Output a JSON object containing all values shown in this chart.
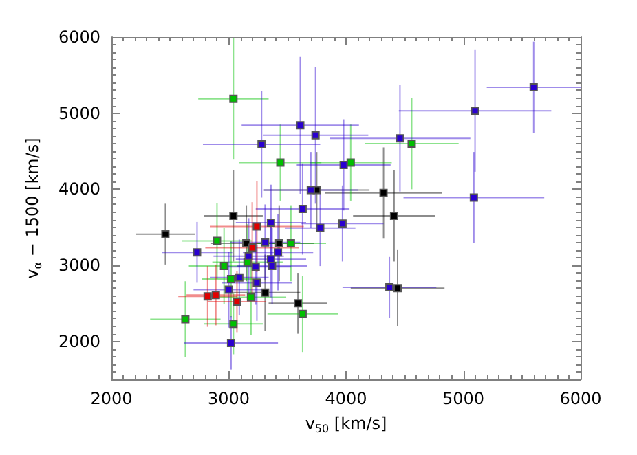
{
  "chart_data": {
    "type": "scatter",
    "xlabel": "v$_{50}$ [km/s]",
    "ylabel": "v$_{α}$ − 1500 [km/s]",
    "xlim": [
      2000,
      6000
    ],
    "ylim": [
      1500,
      6000
    ],
    "xticks": [
      2000,
      3000,
      4000,
      5000,
      6000
    ],
    "yticks": [
      2000,
      3000,
      4000,
      5000,
      6000
    ],
    "grid": false,
    "marker": "square",
    "series": [
      {
        "color": "#000000",
        "x": [
          2460,
          3040,
          3150,
          3430,
          3750,
          4320,
          4410,
          3310,
          3590,
          4440
        ],
        "values": [
          3410,
          3650,
          3290,
          3290,
          3990,
          3950,
          3650,
          2640,
          2500,
          2700
        ],
        "xerrors": [
          250,
          250,
          300,
          300,
          450,
          500,
          350,
          300,
          250,
          400
        ],
        "errors": [
          400,
          600,
          500,
          500,
          500,
          600,
          600,
          500,
          400,
          500
        ]
      },
      {
        "color": "#00c000",
        "x": [
          3040,
          3440,
          4040,
          4560,
          2900,
          3530,
          3160,
          2960,
          3020,
          3190,
          3630,
          2630,
          3040
        ],
        "values": [
          5190,
          4350,
          4350,
          4600,
          3320,
          3290,
          3040,
          2990,
          2820,
          2580,
          2360,
          2290,
          2230
        ],
        "xerrors": [
          300,
          350,
          350,
          400,
          300,
          300,
          300,
          300,
          250,
          300,
          300,
          300,
          250
        ],
        "errors": [
          800,
          500,
          500,
          600,
          500,
          500,
          500,
          500,
          500,
          500,
          500,
          500,
          400
        ]
      },
      {
        "color": "#2a00d0",
        "x": [
          5600,
          5100,
          4460,
          3610,
          3740,
          3280,
          3980,
          3700,
          3630,
          3970,
          3360,
          3780,
          2730,
          3310,
          3420,
          3170,
          3230,
          3360,
          3370,
          3090,
          3240,
          3000,
          5090,
          4370,
          3020
        ],
        "values": [
          5340,
          5030,
          4670,
          4840,
          4710,
          4590,
          4320,
          3990,
          3740,
          3550,
          3560,
          3490,
          3170,
          3300,
          3170,
          3120,
          2980,
          3080,
          2990,
          2840,
          2770,
          2680,
          3890,
          2710,
          1980
        ],
        "xerrors": [
          400,
          650,
          600,
          500,
          450,
          500,
          400,
          400,
          400,
          350,
          300,
          300,
          300,
          300,
          300,
          300,
          300,
          300,
          300,
          250,
          300,
          300,
          600,
          400,
          400
        ],
        "errors": [
          600,
          800,
          700,
          900,
          900,
          700,
          600,
          500,
          600,
          500,
          500,
          500,
          400,
          500,
          500,
          500,
          500,
          500,
          500,
          500,
          500,
          500,
          600,
          400,
          350
        ]
      },
      {
        "color": "#e00000",
        "x": [
          3240,
          3200,
          2820,
          2890,
          3070
        ],
        "values": [
          3510,
          3230,
          2590,
          2610,
          2520
        ],
        "xerrors": [
          400,
          400,
          250,
          250,
          250
        ],
        "errors": [
          600,
          600,
          400,
          400,
          400
        ]
      }
    ]
  }
}
